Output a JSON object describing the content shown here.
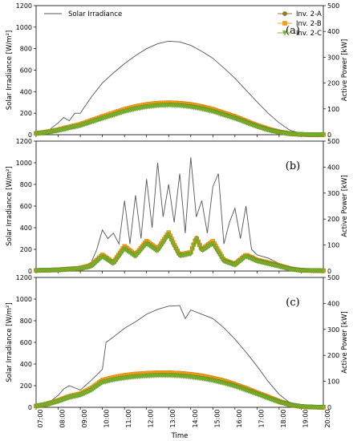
{
  "chart_data": {
    "type": "line",
    "xlabel": "Time",
    "x_ticks": [
      "07:00",
      "08:00",
      "09:00",
      "10:00",
      "11:00",
      "12:00",
      "13:00",
      "14:00",
      "15:00",
      "16:00",
      "17:00",
      "18:00",
      "19:00",
      "20:00"
    ],
    "xlim": [
      "07:00",
      "20:00"
    ],
    "left_axis": {
      "label": "Solar Irradiance [W/m²]",
      "ylim": [
        0,
        1200
      ],
      "ticks": [
        0,
        200,
        400,
        600,
        800,
        1000,
        1200
      ]
    },
    "right_axis": {
      "label": "Active Power [kW]",
      "ylim": [
        0,
        500
      ],
      "ticks": [
        0,
        100,
        200,
        300,
        400,
        500
      ]
    },
    "legend_irradiance": "Solar Irradiance",
    "legend_irradiance_location": "top-left",
    "legend_inverters_location": "top-right",
    "series_styles": [
      {
        "name": "Inv. 2-A",
        "color": "#9b7a2c",
        "marker": "circle"
      },
      {
        "name": "Inv. 2-B",
        "color": "#f5a01a",
        "marker": "square"
      },
      {
        "name": "Inv. 2-C",
        "color": "#7cb52f",
        "marker": "triangle-down"
      }
    ],
    "panels": [
      {
        "label": "(a)",
        "show_x_ticks": false,
        "irradiance": {
          "x": [
            "07:00",
            "07:30",
            "08:00",
            "08:15",
            "08:30",
            "08:45",
            "09:00",
            "09:30",
            "10:00",
            "10:30",
            "11:00",
            "11:30",
            "12:00",
            "12:30",
            "13:00",
            "13:30",
            "14:00",
            "14:30",
            "15:00",
            "15:30",
            "16:00",
            "16:30",
            "17:00",
            "17:30",
            "18:00",
            "18:30",
            "19:00",
            "19:30",
            "20:00"
          ],
          "y": [
            10,
            30,
            110,
            160,
            130,
            200,
            200,
            350,
            480,
            575,
            660,
            735,
            800,
            845,
            870,
            862,
            830,
            775,
            710,
            620,
            525,
            415,
            305,
            200,
            110,
            40,
            12,
            3,
            0
          ]
        },
        "power": {
          "x": [
            "07:00",
            "07:30",
            "08:00",
            "08:30",
            "09:00",
            "09:30",
            "10:00",
            "10:30",
            "11:00",
            "11:30",
            "12:00",
            "12:30",
            "13:00",
            "13:30",
            "14:00",
            "14:30",
            "15:00",
            "15:30",
            "16:00",
            "16:30",
            "17:00",
            "17:30",
            "18:00",
            "18:30",
            "19:00",
            "19:30",
            "20:00"
          ],
          "series": [
            {
              "name": "Inv. 2-A",
              "values": [
                5,
                10,
                18,
                28,
                38,
                52,
                66,
                80,
                94,
                105,
                113,
                118,
                120,
                118,
                113,
                105,
                94,
                80,
                66,
                50,
                34,
                20,
                10,
                4,
                1,
                0,
                0
              ]
            },
            {
              "name": "Inv. 2-B",
              "values": [
                5,
                11,
                19,
                30,
                40,
                55,
                70,
                84,
                98,
                109,
                117,
                122,
                124,
                122,
                117,
                109,
                98,
                84,
                70,
                53,
                36,
                22,
                11,
                4,
                1,
                0,
                0
              ]
            },
            {
              "name": "Inv. 2-C",
              "values": [
                4,
                9,
                16,
                26,
                35,
                49,
                63,
                76,
                90,
                100,
                108,
                113,
                115,
                113,
                108,
                100,
                90,
                76,
                63,
                47,
                31,
                18,
                9,
                3,
                1,
                0,
                0
              ]
            }
          ]
        }
      },
      {
        "label": "(b)",
        "show_x_ticks": false,
        "irradiance": {
          "x": [
            "07:00",
            "08:00",
            "09:00",
            "09:30",
            "09:45",
            "10:00",
            "10:15",
            "10:30",
            "10:45",
            "11:00",
            "11:15",
            "11:30",
            "11:45",
            "12:00",
            "12:15",
            "12:30",
            "12:45",
            "13:00",
            "13:15",
            "13:30",
            "13:45",
            "14:00",
            "14:15",
            "14:30",
            "14:45",
            "15:00",
            "15:15",
            "15:30",
            "15:45",
            "16:00",
            "16:15",
            "16:30",
            "16:45",
            "17:00",
            "17:30",
            "18:00",
            "18:30",
            "19:00",
            "19:30",
            "20:00"
          ],
          "y": [
            5,
            15,
            30,
            80,
            200,
            380,
            300,
            350,
            250,
            650,
            250,
            700,
            300,
            850,
            400,
            1000,
            500,
            800,
            450,
            900,
            350,
            1050,
            500,
            650,
            350,
            780,
            900,
            250,
            450,
            580,
            300,
            600,
            200,
            150,
            120,
            70,
            35,
            15,
            5,
            2
          ]
        },
        "power": {
          "x": [
            "07:00",
            "08:00",
            "09:00",
            "09:30",
            "10:00",
            "10:30",
            "11:00",
            "11:30",
            "12:00",
            "12:30",
            "13:00",
            "13:15",
            "13:30",
            "14:00",
            "14:15",
            "14:30",
            "15:00",
            "15:30",
            "16:00",
            "16:30",
            "17:00",
            "17:30",
            "18:00",
            "18:30",
            "19:00",
            "20:00"
          ],
          "series": [
            {
              "name": "Inv. 2-A",
              "values": [
                2,
                4,
                10,
                20,
                60,
                30,
                90,
                60,
                110,
                80,
                145,
                100,
                60,
                70,
                130,
                80,
                110,
                40,
                25,
                60,
                40,
                30,
                20,
                8,
                3,
                1
              ]
            },
            {
              "name": "Inv. 2-B",
              "values": [
                2,
                5,
                11,
                22,
                62,
                32,
                95,
                62,
                115,
                84,
                148,
                102,
                62,
                72,
                128,
                82,
                115,
                42,
                26,
                62,
                42,
                32,
                21,
                9,
                3,
                1
              ]
            },
            {
              "name": "Inv. 2-C",
              "values": [
                2,
                4,
                9,
                18,
                55,
                28,
                85,
                55,
                105,
                76,
                140,
                95,
                58,
                66,
                125,
                78,
                105,
                38,
                23,
                56,
                38,
                28,
                18,
                7,
                2,
                1
              ]
            }
          ]
        }
      },
      {
        "label": "(c)",
        "show_x_ticks": true,
        "irradiance": {
          "x": [
            "07:00",
            "07:30",
            "08:00",
            "08:15",
            "08:30",
            "09:00",
            "09:30",
            "10:00",
            "10:10",
            "10:30",
            "11:00",
            "11:30",
            "12:00",
            "12:30",
            "13:00",
            "13:30",
            "13:45",
            "14:00",
            "14:30",
            "15:00",
            "15:30",
            "16:00",
            "16:30",
            "17:00",
            "17:30",
            "18:00",
            "18:30",
            "19:00",
            "19:30",
            "20:00"
          ],
          "y": [
            10,
            30,
            110,
            170,
            200,
            160,
            250,
            350,
            600,
            650,
            730,
            790,
            860,
            905,
            935,
            940,
            820,
            900,
            860,
            820,
            735,
            630,
            510,
            380,
            240,
            120,
            40,
            12,
            3,
            0
          ]
        },
        "power": {
          "x": [
            "07:00",
            "07:30",
            "08:00",
            "08:30",
            "09:00",
            "09:30",
            "10:00",
            "10:30",
            "11:00",
            "11:30",
            "12:00",
            "12:30",
            "13:00",
            "13:30",
            "14:00",
            "14:30",
            "15:00",
            "15:30",
            "16:00",
            "16:30",
            "17:00",
            "17:30",
            "18:00",
            "18:30",
            "19:00",
            "19:30",
            "20:00"
          ],
          "series": [
            {
              "name": "Inv. 2-A",
              "values": [
                5,
                12,
                25,
                40,
                50,
                70,
                100,
                110,
                118,
                123,
                126,
                128,
                128,
                126,
                122,
                116,
                108,
                98,
                85,
                70,
                54,
                38,
                22,
                10,
                3,
                1,
                0
              ]
            },
            {
              "name": "Inv. 2-B",
              "values": [
                5,
                13,
                26,
                42,
                52,
                73,
                104,
                115,
                123,
                128,
                131,
                133,
                133,
                131,
                127,
                121,
                112,
                102,
                88,
                73,
                56,
                40,
                23,
                10,
                3,
                1,
                0
              ]
            },
            {
              "name": "Inv. 2-C",
              "values": [
                4,
                11,
                23,
                38,
                47,
                66,
                96,
                106,
                113,
                118,
                121,
                123,
                123,
                121,
                117,
                111,
                103,
                93,
                81,
                66,
                51,
                35,
                20,
                9,
                3,
                1,
                0
              ]
            }
          ]
        }
      }
    ]
  }
}
